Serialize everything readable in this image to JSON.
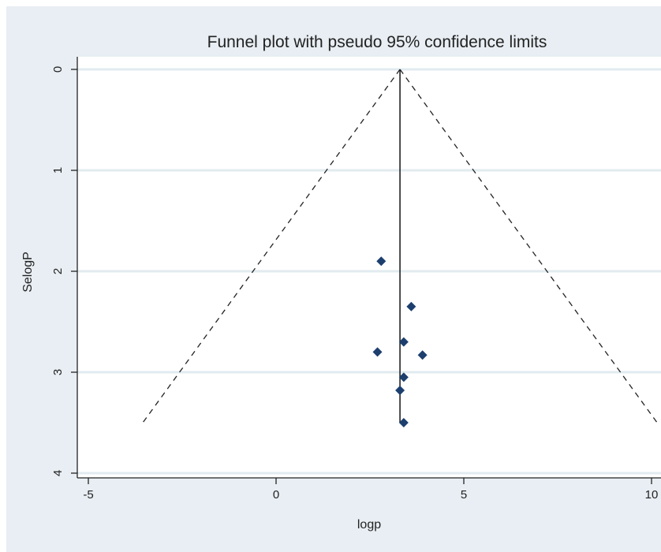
{
  "chart_data": {
    "type": "scatter",
    "title": "Funnel plot with pseudo 95% confidence limits",
    "xlabel": "logp",
    "ylabel": "SelogP",
    "xlim": [
      -5.2,
      10.3
    ],
    "ylim": [
      0,
      4.2
    ],
    "y_reversed": true,
    "x_ticks": [
      "-5",
      "0",
      "5",
      "10"
    ],
    "y_ticks": [
      "0",
      "1",
      "2",
      "3",
      "4"
    ],
    "grid": "horizontal",
    "points": [
      {
        "x": 2.8,
        "y": 1.9
      },
      {
        "x": 3.6,
        "y": 2.35
      },
      {
        "x": 3.4,
        "y": 2.7
      },
      {
        "x": 2.7,
        "y": 2.8
      },
      {
        "x": 3.9,
        "y": 2.83
      },
      {
        "x": 3.4,
        "y": 3.05
      },
      {
        "x": 3.3,
        "y": 3.18
      },
      {
        "x": 3.4,
        "y": 3.5
      }
    ],
    "pooled_estimate": {
      "x": 3.3,
      "y_from": 0,
      "y_to": 3.5
    },
    "confidence_limits": {
      "apex": {
        "x": 3.3,
        "y": 0
      },
      "left_base": {
        "x": -3.55,
        "y": 3.5
      },
      "right_base": {
        "x": 10.15,
        "y": 3.5
      }
    },
    "colors": {
      "background": "#e8eef3",
      "plot_area": "#ffffff",
      "gridline": "#e1ebf0",
      "marker": "#1c3f6e",
      "line": "#222222"
    }
  }
}
